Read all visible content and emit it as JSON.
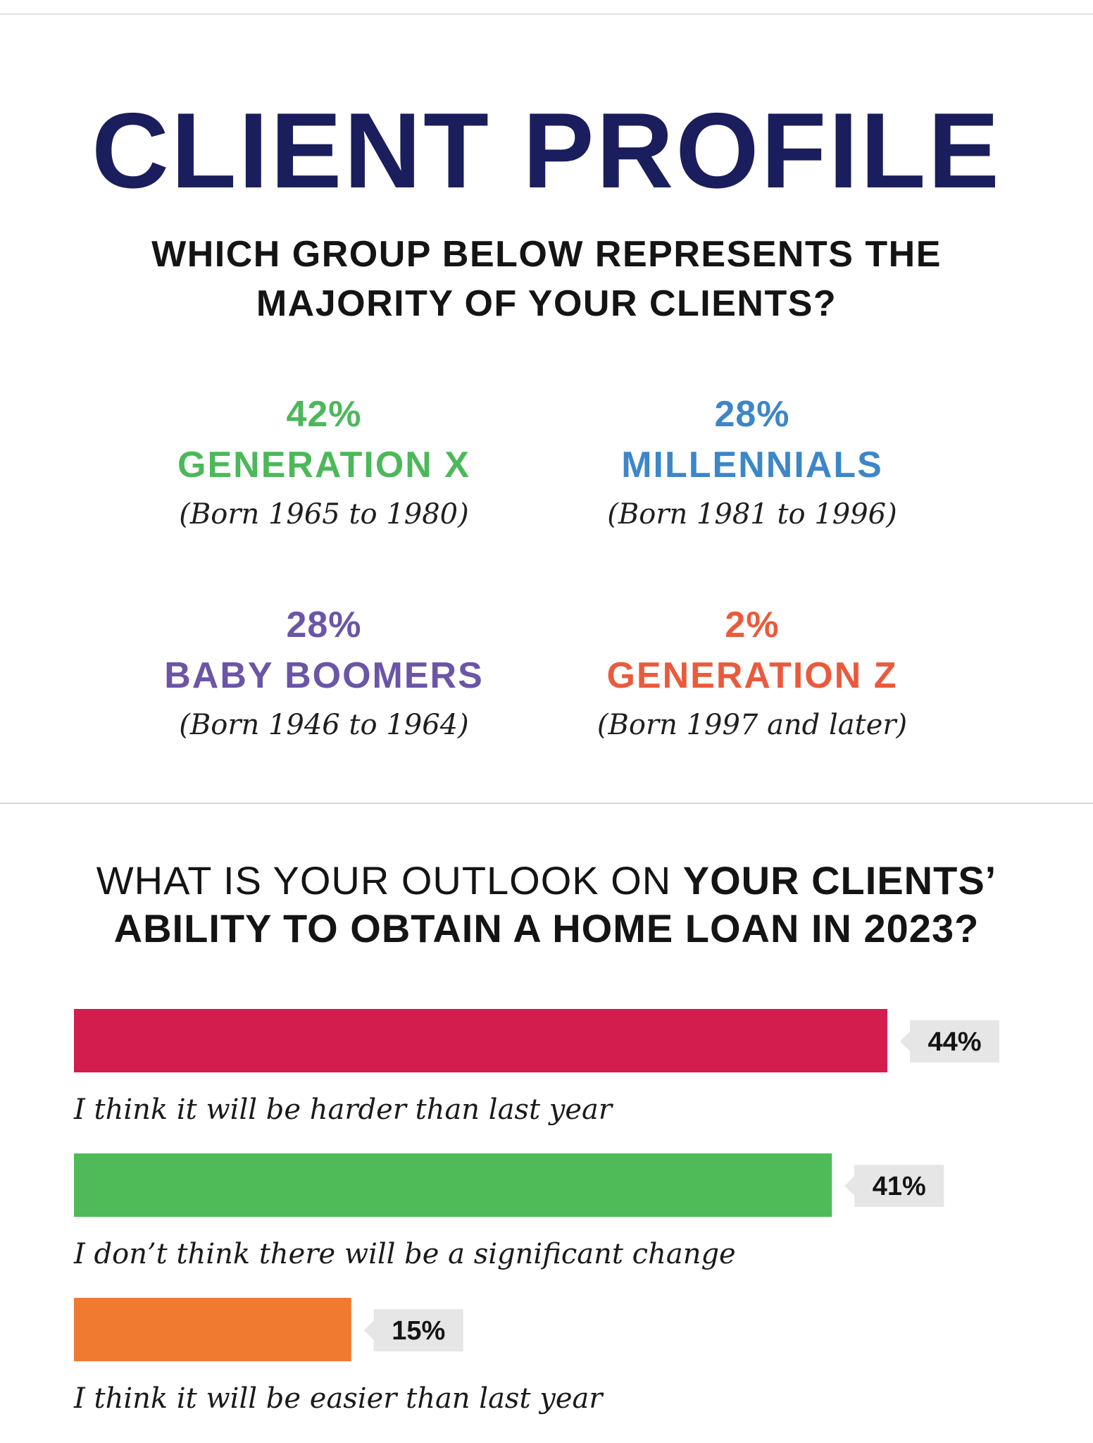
{
  "title": "CLIENT PROFILE",
  "question1": {
    "line1": "WHICH GROUP BELOW REPRESENTS THE",
    "line2": "MAJORITY OF YOUR CLIENTS?"
  },
  "generations": [
    {
      "percent": "42%",
      "name": "GENERATION X",
      "born": "(Born 1965 to 1980)",
      "color": "#4cb85a"
    },
    {
      "percent": "28%",
      "name": "MILLENNIALS",
      "born": "(Born 1981 to 1996)",
      "color": "#3d86c8"
    },
    {
      "percent": "28%",
      "name": "BABY BOOMERS",
      "born": "(Born 1946 to 1964)",
      "color": "#6b55a6"
    },
    {
      "percent": "2%",
      "name": "GENERATION Z",
      "born": "(Born 1997 and later)",
      "color": "#ea5a3d"
    }
  ],
  "question2": {
    "part_light": "WHAT IS YOUR OUTLOOK ON ",
    "part_bold": "YOUR CLIENTS’",
    "line2": "ABILITY TO OBTAIN A HOME LOAN IN 2023?"
  },
  "chart_data": {
    "type": "bar",
    "orientation": "horizontal",
    "categories": [
      "I think it will be harder than last year",
      "I don’t think there will be a significant change",
      "I think it will be easier than last year"
    ],
    "values": [
      44,
      41,
      15
    ],
    "value_labels": [
      "44%",
      "41%",
      "15%"
    ],
    "colors": [
      "#d21d4e",
      "#4fbb58",
      "#f07a30"
    ],
    "label_box_color": "#e6e6e6",
    "grid": false
  }
}
